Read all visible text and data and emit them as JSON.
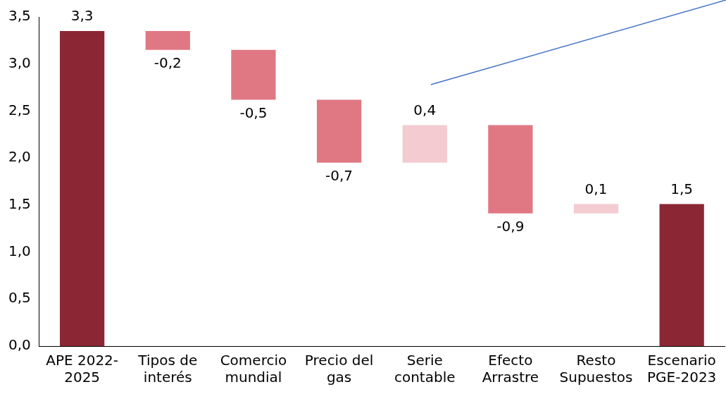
{
  "chart_data": {
    "type": "bar",
    "categories": [
      "APE 2022-2025",
      "Tipos de interés",
      "Comercio mundial",
      "Precio del gas",
      "Serie contable",
      "Efecto Arrastre",
      "Resto Supuestos",
      "Escenario PGE-2023"
    ],
    "values": [
      3.35,
      -0.2,
      -0.53,
      -0.67,
      0.4,
      -0.94,
      0.1,
      1.51
    ],
    "base": [
      0,
      3.35,
      3.15,
      2.62,
      1.95,
      2.35,
      1.41,
      0
    ],
    "colors": [
      "#8b2634",
      "#e07883",
      "#e07883",
      "#e07883",
      "#f3cbd0",
      "#e07883",
      "#f3cbd0",
      "#8b2634"
    ],
    "value_labels": [
      "3,3",
      "-0,2",
      "-0,5",
      "-0,7",
      "0,4",
      "-0,9",
      "0,1",
      "1,5"
    ],
    "ylim": [
      0,
      3.5
    ],
    "yticks": [
      {
        "value": 0,
        "label": "0,0"
      },
      {
        "value": 0.5,
        "label": "0,5"
      },
      {
        "value": 1,
        "label": "1,0"
      },
      {
        "value": 1.5,
        "label": "1,5"
      },
      {
        "value": 2,
        "label": "2,0"
      },
      {
        "value": 2.5,
        "label": "2,5"
      },
      {
        "value": 3,
        "label": "3,0"
      },
      {
        "value": 3.5,
        "label": "3,5"
      }
    ],
    "grid": false,
    "legend": false
  }
}
